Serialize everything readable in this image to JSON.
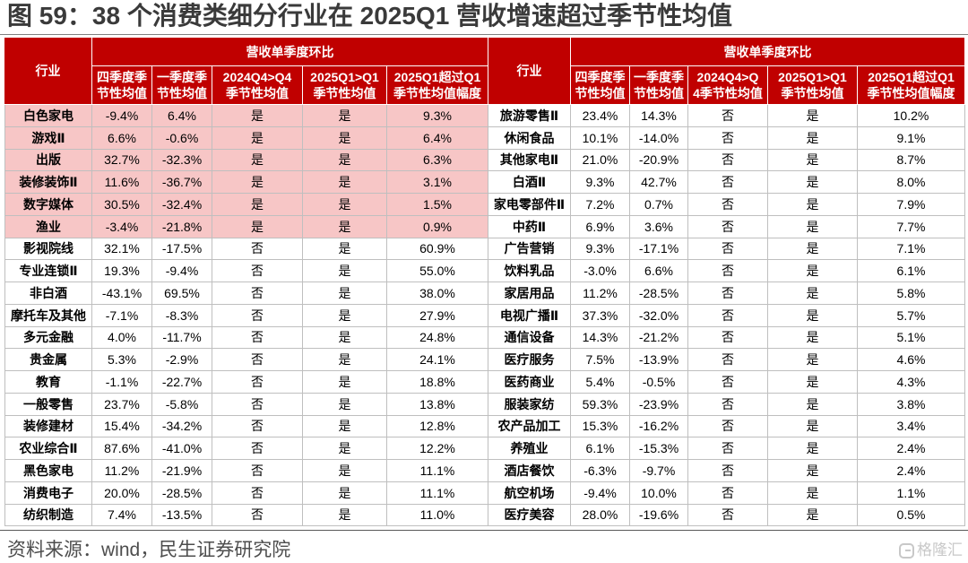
{
  "chart_data": {
    "type": "table",
    "title": "图 59：38 个消费类细分行业在 2025Q1 营收增速超过季节性均值",
    "panels": [
      {
        "industry_header": "行业",
        "group_header": "营收单季度环比",
        "column_headers": [
          [
            "四季度季",
            "节性均值"
          ],
          [
            "一季度季",
            "节性均值"
          ],
          [
            "2024Q4>Q4",
            "季节性均值"
          ],
          [
            "2025Q1>Q1",
            "季节性均值"
          ],
          [
            "2025Q1超过Q1",
            "季节性均值幅度"
          ]
        ],
        "rows": [
          {
            "cells": [
              "白色家电",
              "-9.4%",
              "6.4%",
              "是",
              "是",
              "9.3%"
            ],
            "highlight": true
          },
          {
            "cells": [
              "游戏Ⅱ",
              "6.6%",
              "-0.6%",
              "是",
              "是",
              "6.4%"
            ],
            "highlight": true
          },
          {
            "cells": [
              "出版",
              "32.7%",
              "-32.3%",
              "是",
              "是",
              "6.3%"
            ],
            "highlight": true
          },
          {
            "cells": [
              "装修装饰Ⅱ",
              "11.6%",
              "-36.7%",
              "是",
              "是",
              "3.1%"
            ],
            "highlight": true
          },
          {
            "cells": [
              "数字媒体",
              "30.5%",
              "-32.4%",
              "是",
              "是",
              "1.5%"
            ],
            "highlight": true
          },
          {
            "cells": [
              "渔业",
              "-3.4%",
              "-21.8%",
              "是",
              "是",
              "0.9%"
            ],
            "highlight": true
          },
          {
            "cells": [
              "影视院线",
              "32.1%",
              "-17.5%",
              "否",
              "是",
              "60.9%"
            ]
          },
          {
            "cells": [
              "专业连锁Ⅱ",
              "19.3%",
              "-9.4%",
              "否",
              "是",
              "55.0%"
            ]
          },
          {
            "cells": [
              "非白酒",
              "-43.1%",
              "69.5%",
              "否",
              "是",
              "38.0%"
            ]
          },
          {
            "cells": [
              "摩托车及其他",
              "-7.1%",
              "-8.3%",
              "否",
              "是",
              "27.9%"
            ]
          },
          {
            "cells": [
              "多元金融",
              "4.0%",
              "-11.7%",
              "否",
              "是",
              "24.8%"
            ]
          },
          {
            "cells": [
              "贵金属",
              "5.3%",
              "-2.9%",
              "否",
              "是",
              "24.1%"
            ]
          },
          {
            "cells": [
              "教育",
              "-1.1%",
              "-22.7%",
              "否",
              "是",
              "18.8%"
            ]
          },
          {
            "cells": [
              "一般零售",
              "23.7%",
              "-5.8%",
              "否",
              "是",
              "13.8%"
            ]
          },
          {
            "cells": [
              "装修建材",
              "15.4%",
              "-34.2%",
              "否",
              "是",
              "12.8%"
            ]
          },
          {
            "cells": [
              "农业综合Ⅱ",
              "87.6%",
              "-41.0%",
              "否",
              "是",
              "12.2%"
            ]
          },
          {
            "cells": [
              "黑色家电",
              "11.2%",
              "-21.9%",
              "否",
              "是",
              "11.1%"
            ]
          },
          {
            "cells": [
              "消费电子",
              "20.0%",
              "-28.5%",
              "否",
              "是",
              "11.1%"
            ]
          },
          {
            "cells": [
              "纺织制造",
              "7.4%",
              "-13.5%",
              "否",
              "是",
              "11.0%"
            ]
          }
        ]
      },
      {
        "industry_header": "行业",
        "group_header": "营收单季度环比",
        "column_headers": [
          [
            "四季度季",
            "节性均值"
          ],
          [
            "一季度季",
            "节性均值"
          ],
          [
            "2024Q4>Q",
            "4季节性均值"
          ],
          [
            "2025Q1>Q1",
            "季节性均值"
          ],
          [
            "2025Q1超过Q1",
            "季节性均值幅度"
          ]
        ],
        "rows": [
          {
            "cells": [
              "旅游零售Ⅱ",
              "23.4%",
              "14.3%",
              "否",
              "是",
              "10.2%"
            ]
          },
          {
            "cells": [
              "休闲食品",
              "10.1%",
              "-14.0%",
              "否",
              "是",
              "9.1%"
            ]
          },
          {
            "cells": [
              "其他家电Ⅱ",
              "21.0%",
              "-20.9%",
              "否",
              "是",
              "8.7%"
            ]
          },
          {
            "cells": [
              "白酒Ⅱ",
              "9.3%",
              "42.7%",
              "否",
              "是",
              "8.0%"
            ]
          },
          {
            "cells": [
              "家电零部件Ⅱ",
              "7.2%",
              "0.7%",
              "否",
              "是",
              "7.9%"
            ]
          },
          {
            "cells": [
              "中药Ⅱ",
              "6.9%",
              "3.6%",
              "否",
              "是",
              "7.7%"
            ]
          },
          {
            "cells": [
              "广告营销",
              "9.3%",
              "-17.1%",
              "否",
              "是",
              "7.1%"
            ]
          },
          {
            "cells": [
              "饮料乳品",
              "-3.0%",
              "6.6%",
              "否",
              "是",
              "6.1%"
            ]
          },
          {
            "cells": [
              "家居用品",
              "11.2%",
              "-28.5%",
              "否",
              "是",
              "5.8%"
            ]
          },
          {
            "cells": [
              "电视广播Ⅱ",
              "37.3%",
              "-32.0%",
              "否",
              "是",
              "5.7%"
            ]
          },
          {
            "cells": [
              "通信设备",
              "14.3%",
              "-21.2%",
              "否",
              "是",
              "5.1%"
            ]
          },
          {
            "cells": [
              "医疗服务",
              "7.5%",
              "-13.9%",
              "否",
              "是",
              "4.6%"
            ]
          },
          {
            "cells": [
              "医药商业",
              "5.4%",
              "-0.5%",
              "否",
              "是",
              "4.3%"
            ]
          },
          {
            "cells": [
              "服装家纺",
              "59.3%",
              "-23.9%",
              "否",
              "是",
              "3.8%"
            ]
          },
          {
            "cells": [
              "农产品加工",
              "15.3%",
              "-16.2%",
              "否",
              "是",
              "3.4%"
            ]
          },
          {
            "cells": [
              "养殖业",
              "6.1%",
              "-15.3%",
              "否",
              "是",
              "2.4%"
            ]
          },
          {
            "cells": [
              "酒店餐饮",
              "-6.3%",
              "-9.7%",
              "否",
              "是",
              "2.4%"
            ]
          },
          {
            "cells": [
              "航空机场",
              "-9.4%",
              "10.0%",
              "否",
              "是",
              "1.1%"
            ]
          },
          {
            "cells": [
              "医疗美容",
              "28.0%",
              "-19.6%",
              "否",
              "是",
              "0.5%"
            ]
          }
        ]
      }
    ]
  },
  "source": "资料来源：wind，民生证券研究院",
  "watermark": {
    "text": "格隆汇",
    "icon": "gelonghui-logo-icon"
  },
  "colors": {
    "header_bg": "#C00000",
    "header_text": "#FFFFFF",
    "highlight_bg": "#F7C6C6",
    "grid": "#BFBFBF"
  }
}
